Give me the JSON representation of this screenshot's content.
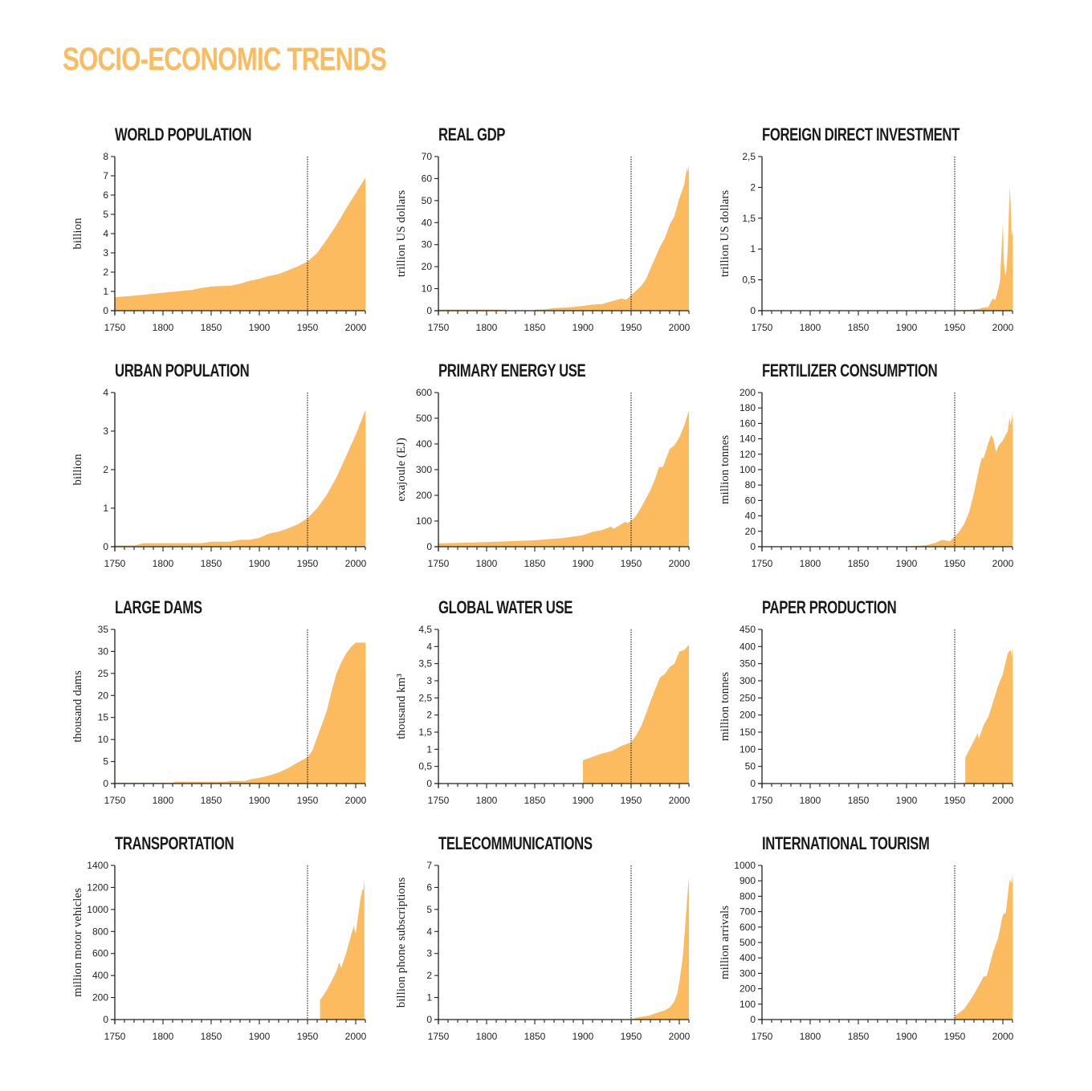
{
  "page": {
    "title": "SOCIO-ECONOMIC TRENDS",
    "fill_color": "#fbbb5e",
    "axis_color": "#231f20",
    "reference_year": 1950
  },
  "chart_data": [
    {
      "type": "area",
      "title": "WORLD POPULATION",
      "ylabel": "billion",
      "xlabel": "",
      "xlim": [
        1750,
        2010
      ],
      "xticks": [
        1750,
        1800,
        1850,
        1900,
        1950,
        2000
      ],
      "ylim": [
        0,
        8
      ],
      "yticks": [
        0,
        1,
        2,
        3,
        4,
        5,
        6,
        7,
        8
      ],
      "ytick_labels": [
        "0",
        "1",
        "2",
        "3",
        "4",
        "5",
        "6",
        "7",
        "8"
      ],
      "annotation": "dotted vertical line at 1950",
      "x": [
        1750,
        1760,
        1770,
        1780,
        1790,
        1800,
        1810,
        1820,
        1830,
        1840,
        1850,
        1860,
        1870,
        1880,
        1890,
        1900,
        1910,
        1920,
        1930,
        1940,
        1950,
        1960,
        1970,
        1980,
        1990,
        2000,
        2010
      ],
      "y": [
        0.7,
        0.74,
        0.78,
        0.83,
        0.88,
        0.93,
        0.98,
        1.03,
        1.08,
        1.18,
        1.25,
        1.28,
        1.29,
        1.4,
        1.55,
        1.65,
        1.8,
        1.9,
        2.1,
        2.3,
        2.55,
        3.0,
        3.7,
        4.45,
        5.3,
        6.1,
        6.9
      ]
    },
    {
      "type": "area",
      "title": "REAL GDP",
      "ylabel": "trillion US dollars",
      "xlabel": "",
      "xlim": [
        1750,
        2010
      ],
      "xticks": [
        1750,
        1800,
        1850,
        1900,
        1950,
        2000
      ],
      "ylim": [
        0,
        70
      ],
      "yticks": [
        0,
        10,
        20,
        30,
        40,
        50,
        60,
        70
      ],
      "ytick_labels": [
        "0",
        "10",
        "20",
        "30",
        "40",
        "50",
        "60",
        "70"
      ],
      "annotation": "dotted vertical line at 1950; no data 1821-1849",
      "segments": [
        {
          "x": [
            1750,
            1820
          ],
          "y": [
            0.5,
            0.5
          ]
        },
        {
          "x": [
            1850,
            1860,
            1870,
            1880,
            1890,
            1900,
            1910,
            1920,
            1930,
            1940,
            1945,
            1950,
            1955,
            1960,
            1965,
            1970,
            1975,
            1980,
            1985,
            1990,
            1995,
            2000,
            2005,
            2008,
            2009,
            2010
          ],
          "y": [
            0.5,
            0.6,
            1.2,
            1.4,
            1.7,
            2.2,
            2.8,
            3.0,
            4.3,
            5.5,
            5.0,
            7.0,
            9.0,
            11.0,
            14.0,
            19.0,
            24.0,
            29.0,
            33.0,
            39.0,
            43.0,
            51.0,
            57.0,
            65.0,
            63.0,
            66.0
          ]
        }
      ]
    },
    {
      "type": "area",
      "title": "FOREIGN DIRECT INVESTMENT",
      "ylabel": "trillion US dollars",
      "xlabel": "",
      "xlim": [
        1750,
        2010
      ],
      "xticks": [
        1750,
        1800,
        1850,
        1900,
        1950,
        2000
      ],
      "ylim": [
        0,
        2.5
      ],
      "yticks": [
        0,
        0.5,
        1,
        1.5,
        2,
        2.5
      ],
      "ytick_labels": [
        "0",
        "0,5",
        "1",
        "1,5",
        "2",
        "2,5"
      ],
      "annotation": "dotted vertical line at 1950",
      "segments": [
        {
          "x": [
            1950,
            1960,
            1970,
            1975,
            1980,
            1985,
            1988,
            1990,
            1992,
            1995,
            1997,
            1999,
            2000,
            2001,
            2002,
            2003,
            2004,
            2005,
            2006,
            2007,
            2008,
            2009,
            2010
          ],
          "y": [
            0.01,
            0.01,
            0.02,
            0.03,
            0.05,
            0.06,
            0.16,
            0.2,
            0.17,
            0.33,
            0.48,
            1.1,
            1.4,
            0.8,
            0.62,
            0.58,
            0.73,
            0.98,
            1.46,
            2.0,
            1.77,
            1.2,
            1.3
          ]
        }
      ]
    },
    {
      "type": "area",
      "title": "URBAN POPULATION",
      "ylabel": "billion",
      "xlabel": "",
      "xlim": [
        1750,
        2010
      ],
      "xticks": [
        1750,
        1800,
        1850,
        1900,
        1950,
        2000
      ],
      "ylim": [
        0,
        4
      ],
      "yticks": [
        0,
        1,
        2,
        3,
        4
      ],
      "ytick_labels": [
        "0",
        "1",
        "2",
        "3",
        "4"
      ],
      "annotation": "dotted vertical line at 1950",
      "x": [
        1750,
        1770,
        1780,
        1800,
        1840,
        1850,
        1870,
        1880,
        1890,
        1900,
        1910,
        1920,
        1930,
        1940,
        1950,
        1960,
        1970,
        1980,
        1990,
        2000,
        2010
      ],
      "y": [
        0.03,
        0.03,
        0.09,
        0.09,
        0.09,
        0.13,
        0.13,
        0.18,
        0.18,
        0.23,
        0.34,
        0.39,
        0.48,
        0.58,
        0.74,
        1.0,
        1.35,
        1.8,
        2.35,
        2.9,
        3.55
      ]
    },
    {
      "type": "area",
      "title": "PRIMARY ENERGY USE",
      "ylabel": "exajoule (EJ)",
      "xlabel": "",
      "xlim": [
        1750,
        2010
      ],
      "xticks": [
        1750,
        1800,
        1850,
        1900,
        1950,
        2000
      ],
      "ylim": [
        0,
        600
      ],
      "yticks": [
        0,
        100,
        200,
        300,
        400,
        500,
        600
      ],
      "ytick_labels": [
        "0",
        "100",
        "200",
        "300",
        "400",
        "500",
        "600"
      ],
      "annotation": "dotted vertical line at 1950",
      "x": [
        1750,
        1800,
        1850,
        1880,
        1900,
        1910,
        1920,
        1929,
        1932,
        1940,
        1944,
        1946,
        1950,
        1955,
        1960,
        1965,
        1970,
        1975,
        1979,
        1983,
        1990,
        1995,
        2000,
        2005,
        2010
      ],
      "y": [
        13,
        18,
        25,
        34,
        45,
        58,
        65,
        78,
        70,
        88,
        97,
        92,
        100,
        120,
        150,
        185,
        220,
        265,
        310,
        310,
        380,
        395,
        425,
        470,
        530
      ]
    },
    {
      "type": "area",
      "title": "FERTILIZER CONSUMPTION",
      "ylabel": "million tonnes",
      "xlabel": "",
      "xlim": [
        1750,
        2010
      ],
      "xticks": [
        1750,
        1800,
        1850,
        1900,
        1950,
        2000
      ],
      "ylim": [
        0,
        200
      ],
      "yticks": [
        0,
        20,
        40,
        60,
        80,
        100,
        120,
        140,
        160,
        180,
        200
      ],
      "ytick_labels": [
        "0",
        "20",
        "40",
        "60",
        "80",
        "100",
        "120",
        "140",
        "160",
        "180",
        "200"
      ],
      "annotation": "dotted vertical line at 1950",
      "x": [
        1900,
        1910,
        1920,
        1930,
        1937,
        1945,
        1950,
        1955,
        1960,
        1965,
        1970,
        1975,
        1978,
        1980,
        1985,
        1988,
        1990,
        1993,
        1995,
        2000,
        2005,
        2007,
        2008,
        2010
      ],
      "y": [
        0.5,
        1,
        2,
        5,
        9,
        7,
        13,
        20,
        30,
        45,
        70,
        100,
        115,
        115,
        135,
        145,
        140,
        122,
        130,
        138,
        150,
        168,
        158,
        172
      ]
    },
    {
      "type": "area",
      "title": "LARGE DAMS",
      "ylabel": "thousand dams",
      "xlabel": "",
      "xlim": [
        1750,
        2010
      ],
      "xticks": [
        1750,
        1800,
        1850,
        1900,
        1950,
        2000
      ],
      "ylim": [
        0,
        35
      ],
      "yticks": [
        0,
        5,
        10,
        15,
        20,
        25,
        30,
        35
      ],
      "ytick_labels": [
        "0",
        "5",
        "10",
        "15",
        "20",
        "25",
        "30",
        "35"
      ],
      "annotation": "dotted vertical line at 1950",
      "x": [
        1750,
        1810,
        1812,
        1865,
        1870,
        1885,
        1890,
        1900,
        1910,
        1920,
        1930,
        1940,
        1950,
        1955,
        1960,
        1965,
        1970,
        1975,
        1980,
        1985,
        1990,
        1995,
        2000,
        2010
      ],
      "y": [
        0.2,
        0.2,
        0.4,
        0.4,
        0.6,
        0.6,
        0.9,
        1.3,
        1.8,
        2.5,
        3.5,
        4.8,
        6.0,
        7.5,
        10.5,
        13.5,
        16.5,
        21,
        25,
        27.5,
        29.5,
        31,
        32,
        32
      ]
    },
    {
      "type": "area",
      "title": "GLOBAL WATER USE",
      "ylabel": "thousand km³",
      "xlabel": "",
      "xlim": [
        1750,
        2010
      ],
      "xticks": [
        1750,
        1800,
        1850,
        1900,
        1950,
        2000
      ],
      "ylim": [
        0,
        4.5
      ],
      "yticks": [
        0,
        0.5,
        1,
        1.5,
        2,
        2.5,
        3,
        3.5,
        4,
        4.5
      ],
      "ytick_labels": [
        "0",
        "0,5",
        "1",
        "1,5",
        "2",
        "2,5",
        "3",
        "3,5",
        "4",
        "4,5"
      ],
      "annotation": "dotted vertical line at 1950",
      "x": [
        1900,
        1910,
        1920,
        1930,
        1940,
        1950,
        1955,
        1960,
        1965,
        1970,
        1975,
        1980,
        1985,
        1990,
        1995,
        2000,
        2005,
        2010
      ],
      "y": [
        0.68,
        0.78,
        0.88,
        0.95,
        1.1,
        1.2,
        1.4,
        1.65,
        2.0,
        2.4,
        2.75,
        3.1,
        3.2,
        3.4,
        3.5,
        3.85,
        3.9,
        4.05
      ]
    },
    {
      "type": "area",
      "title": "PAPER PRODUCTION",
      "ylabel": "million tonnes",
      "xlabel": "",
      "xlim": [
        1750,
        2010
      ],
      "xticks": [
        1750,
        1800,
        1850,
        1900,
        1950,
        2000
      ],
      "ylim": [
        0,
        450
      ],
      "yticks": [
        0,
        50,
        100,
        150,
        200,
        250,
        300,
        350,
        400,
        450
      ],
      "ytick_labels": [
        "0",
        "50",
        "100",
        "150",
        "200",
        "250",
        "300",
        "350",
        "400",
        "450"
      ],
      "annotation": "dotted vertical line at 1950",
      "x": [
        1961,
        1965,
        1970,
        1974,
        1975,
        1980,
        1985,
        1990,
        1995,
        2000,
        2005,
        2008,
        2009,
        2010
      ],
      "y": [
        75,
        98,
        125,
        148,
        130,
        170,
        195,
        240,
        285,
        320,
        380,
        390,
        370,
        400
      ]
    },
    {
      "type": "area",
      "title": "TRANSPORTATION",
      "ylabel": "million motor vehicles",
      "xlabel": "",
      "xlim": [
        1750,
        2010
      ],
      "xticks": [
        1750,
        1800,
        1850,
        1900,
        1950,
        2000
      ],
      "ylim": [
        0,
        1400
      ],
      "yticks": [
        0,
        200,
        400,
        600,
        800,
        1000,
        1200,
        1400
      ],
      "ytick_labels": [
        "0",
        "200",
        "400",
        "600",
        "800",
        "1000",
        "1200",
        "1400"
      ],
      "annotation": "dotted vertical line at 1950",
      "x": [
        1963,
        1965,
        1970,
        1975,
        1980,
        1983,
        1985,
        1990,
        1995,
        1998,
        2000,
        2005,
        2007,
        2008,
        2009
      ],
      "y": [
        180,
        200,
        270,
        350,
        440,
        520,
        470,
        600,
        760,
        850,
        780,
        1100,
        1180,
        1180,
        1280
      ]
    },
    {
      "type": "area",
      "title": "TELECOMMUNICATIONS",
      "ylabel": "billion phone subscriptions",
      "xlabel": "",
      "xlim": [
        1750,
        2010
      ],
      "xticks": [
        1750,
        1800,
        1850,
        1900,
        1950,
        2000
      ],
      "ylim": [
        0,
        7
      ],
      "yticks": [
        0,
        1,
        2,
        3,
        4,
        5,
        6,
        7
      ],
      "ytick_labels": [
        "0",
        "1",
        "2",
        "3",
        "4",
        "5",
        "6",
        "7"
      ],
      "annotation": "dotted vertical line at 1950",
      "x": [
        1950,
        1957,
        1960,
        1965,
        1970,
        1975,
        1980,
        1985,
        1990,
        1993,
        1995,
        1998,
        2000,
        2002,
        2004,
        2006,
        2008,
        2010
      ],
      "y": [
        0.02,
        0.1,
        0.12,
        0.15,
        0.2,
        0.28,
        0.35,
        0.42,
        0.55,
        0.7,
        0.85,
        1.2,
        1.7,
        2.3,
        3.0,
        4.2,
        5.4,
        6.5
      ]
    },
    {
      "type": "area",
      "title": "INTERNATIONAL TOURISM",
      "ylabel": "million arrivals",
      "xlabel": "",
      "xlim": [
        1750,
        2010
      ],
      "xticks": [
        1750,
        1800,
        1850,
        1900,
        1950,
        2000
      ],
      "ylim": [
        0,
        1000
      ],
      "yticks": [
        0,
        100,
        200,
        300,
        400,
        500,
        600,
        700,
        800,
        900,
        1000
      ],
      "ytick_labels": [
        "0",
        "100",
        "200",
        "300",
        "400",
        "500",
        "600",
        "700",
        "800",
        "900",
        "1000"
      ],
      "annotation": "dotted vertical line at 1950",
      "x": [
        1950,
        1955,
        1960,
        1965,
        1970,
        1975,
        1980,
        1983,
        1985,
        1990,
        1995,
        2000,
        2002,
        2003,
        2005,
        2007,
        2009,
        2010
      ],
      "y": [
        25,
        45,
        70,
        115,
        165,
        220,
        280,
        280,
        325,
        440,
        530,
        680,
        690,
        690,
        800,
        910,
        880,
        940
      ]
    }
  ]
}
